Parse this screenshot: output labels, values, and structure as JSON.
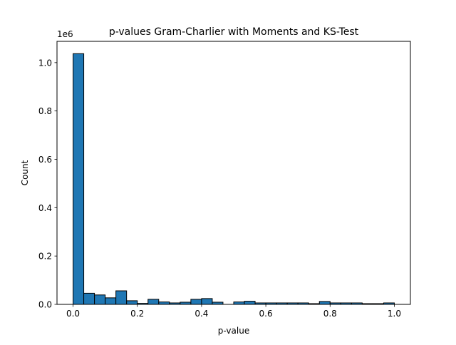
{
  "chart_data": {
    "type": "bar",
    "title": "p-values Gram-Charlier with Moments and KS-Test",
    "xlabel": "p-value",
    "ylabel": "Count",
    "y_offset_label": "1e6",
    "xlim": [
      -0.05,
      1.05
    ],
    "ylim": [
      0,
      1.088
    ],
    "grid": false,
    "bar_color": "#1f77b4",
    "edge_color": "#000000",
    "bin_width": 0.0333,
    "bins": [
      {
        "x0": 0.0,
        "value": 1.037
      },
      {
        "x0": 0.0333,
        "value": 0.046
      },
      {
        "x0": 0.0667,
        "value": 0.039
      },
      {
        "x0": 0.1,
        "value": 0.027
      },
      {
        "x0": 0.1333,
        "value": 0.056
      },
      {
        "x0": 0.1667,
        "value": 0.015
      },
      {
        "x0": 0.2,
        "value": 0.004
      },
      {
        "x0": 0.2333,
        "value": 0.021
      },
      {
        "x0": 0.2667,
        "value": 0.01
      },
      {
        "x0": 0.3,
        "value": 0.006
      },
      {
        "x0": 0.3333,
        "value": 0.009
      },
      {
        "x0": 0.3667,
        "value": 0.021
      },
      {
        "x0": 0.4,
        "value": 0.024
      },
      {
        "x0": 0.4333,
        "value": 0.009
      },
      {
        "x0": 0.4667,
        "value": 0.0
      },
      {
        "x0": 0.5,
        "value": 0.01
      },
      {
        "x0": 0.5333,
        "value": 0.013
      },
      {
        "x0": 0.5667,
        "value": 0.006
      },
      {
        "x0": 0.6,
        "value": 0.006
      },
      {
        "x0": 0.6333,
        "value": 0.006
      },
      {
        "x0": 0.6667,
        "value": 0.006
      },
      {
        "x0": 0.7,
        "value": 0.006
      },
      {
        "x0": 0.7333,
        "value": 0.003
      },
      {
        "x0": 0.7667,
        "value": 0.012
      },
      {
        "x0": 0.8,
        "value": 0.006
      },
      {
        "x0": 0.8333,
        "value": 0.006
      },
      {
        "x0": 0.8667,
        "value": 0.006
      },
      {
        "x0": 0.9,
        "value": 0.003
      },
      {
        "x0": 0.9333,
        "value": 0.003
      },
      {
        "x0": 0.9667,
        "value": 0.006
      }
    ],
    "x_ticks": [
      {
        "value": 0.0,
        "label": "0.0"
      },
      {
        "value": 0.2,
        "label": "0.2"
      },
      {
        "value": 0.4,
        "label": "0.4"
      },
      {
        "value": 0.6,
        "label": "0.6"
      },
      {
        "value": 0.8,
        "label": "0.8"
      },
      {
        "value": 1.0,
        "label": "1.0"
      }
    ],
    "y_ticks": [
      {
        "value": 0.0,
        "label": "0.0"
      },
      {
        "value": 0.2,
        "label": "0.2"
      },
      {
        "value": 0.4,
        "label": "0.4"
      },
      {
        "value": 0.6,
        "label": "0.6"
      },
      {
        "value": 0.8,
        "label": "0.8"
      },
      {
        "value": 1.0,
        "label": "1.0"
      }
    ]
  }
}
